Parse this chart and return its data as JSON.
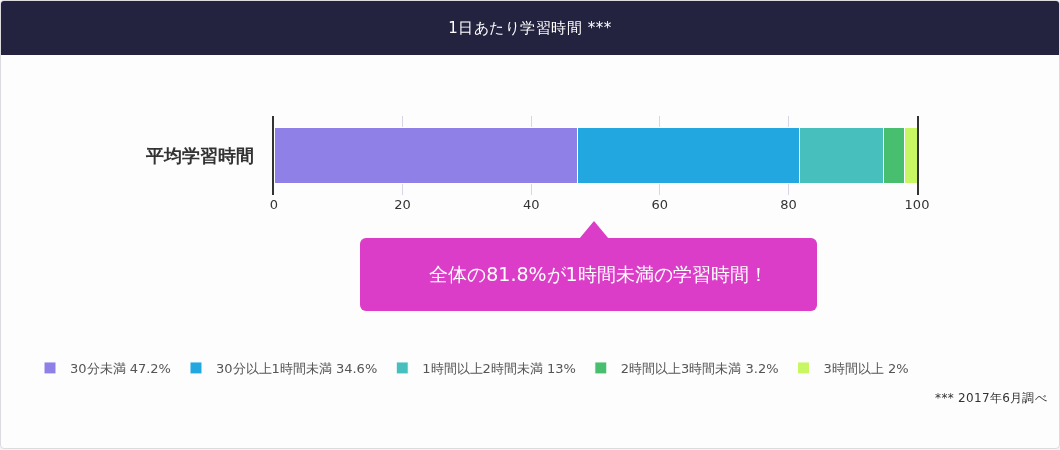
{
  "chart_data": {
    "type": "bar",
    "orientation": "horizontal",
    "stacked": true,
    "title": "1日あたり学習時間 ***",
    "categories": [
      "平均学習時間"
    ],
    "series": [
      {
        "name": "30分未満 47.2%",
        "color": "#8f80e8",
        "values": [
          47.2
        ]
      },
      {
        "name": "30分以上1時間未満 34.6%",
        "color": "#22a7e1",
        "values": [
          34.6
        ]
      },
      {
        "name": "1時間以上2時間未満 13%",
        "color": "#46bfbd",
        "values": [
          13
        ]
      },
      {
        "name": "2時間以上3時間未満 3.2%",
        "color": "#48bf6e",
        "values": [
          3.2
        ]
      },
      {
        "name": "3時間以上 2%",
        "color": "#c9f764",
        "values": [
          2
        ]
      }
    ],
    "xlim": [
      0,
      100
    ],
    "xticks": [
      0,
      20,
      40,
      60,
      80,
      100
    ],
    "grid": "x",
    "legend": "bottom",
    "annotations": [
      "全体の81.8%が1時間未満の学習時間！",
      "*** 2017年6月調べ"
    ]
  }
}
